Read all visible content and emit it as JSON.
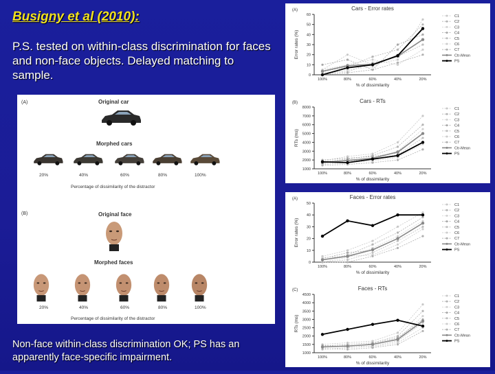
{
  "slide": {
    "title": "Busigny et al (2010):",
    "intro": "P.S. tested on within-class discrimination for faces and non-face objects. Delayed matching to sample.",
    "footer": "Non-face within-class discrimination OK; PS has an apparently face-specific impairment."
  },
  "stimuli": {
    "panel_a_label": "(A)",
    "original_car": "Original car",
    "morphed_cars": "Morphed cars",
    "panel_b_label": "(B)",
    "original_face": "Original face",
    "morphed_faces": "Morphed faces",
    "percentages": [
      "20%",
      "40%",
      "60%",
      "80%",
      "100%"
    ],
    "caption": "Percentage of dissimilarity of the distractor"
  },
  "colors": {
    "background": "#1b1c96",
    "title": "#f0e020",
    "patient": "#000000",
    "control_mean": "#888888",
    "controls": "#bbbbbb"
  },
  "chart_data": [
    {
      "id": "cars-error",
      "type": "line",
      "panel_label": "(A)",
      "title": "Cars - Error rates",
      "ylabel": "Error rates (%)",
      "xlabel": "% of dissimilarity",
      "categories": [
        "100%",
        "80%",
        "60%",
        "40%",
        "20%"
      ],
      "ylim": [
        0,
        60
      ],
      "yticks": [
        "0",
        "10",
        "20",
        "30",
        "40",
        "50",
        "60"
      ],
      "legend": [
        "C1",
        "C2",
        "C3",
        "C4",
        "C5",
        "C6",
        "C7",
        "Ctr-Mean",
        "PS"
      ],
      "controls": [
        [
          5,
          20,
          10,
          15,
          55
        ],
        [
          3,
          8,
          18,
          25,
          50
        ],
        [
          0,
          5,
          8,
          20,
          45
        ],
        [
          10,
          15,
          5,
          30,
          40
        ],
        [
          2,
          3,
          12,
          18,
          30
        ],
        [
          5,
          10,
          15,
          10,
          25
        ],
        [
          0,
          2,
          5,
          12,
          20
        ]
      ],
      "mean": [
        3.5,
        9,
        10.5,
        18.5,
        35
      ],
      "ps": [
        0,
        7,
        10,
        19,
        46
      ]
    },
    {
      "id": "cars-rt",
      "type": "line",
      "panel_label": "(B)",
      "title": "Cars - RTs",
      "ylabel": "RTs (ms)",
      "xlabel": "% of dissimilarity",
      "categories": [
        "100%",
        "80%",
        "60%",
        "40%",
        "20%"
      ],
      "ylim": [
        1000,
        8000
      ],
      "yticks": [
        "1000",
        "2000",
        "3000",
        "4000",
        "5000",
        "6000",
        "7000",
        "8000"
      ],
      "legend": [
        "C1",
        "C2",
        "C3",
        "C4",
        "C5",
        "C6",
        "C7",
        "Ctr-Mean",
        "PS"
      ],
      "controls": [
        [
          1900,
          2400,
          2700,
          4000,
          7000
        ],
        [
          1800,
          2100,
          2500,
          3500,
          6000
        ],
        [
          1600,
          1800,
          2200,
          3000,
          5500
        ],
        [
          2000,
          2200,
          2400,
          2800,
          5000
        ],
        [
          1700,
          1900,
          2100,
          2600,
          4500
        ],
        [
          1500,
          1700,
          1900,
          2300,
          3800
        ],
        [
          1400,
          1500,
          1700,
          2000,
          3200
        ]
      ],
      "mean": [
        1700,
        1950,
        2200,
        2900,
        5000
      ],
      "ps": [
        1800,
        1700,
        2100,
        2500,
        4000
      ]
    },
    {
      "id": "faces-error",
      "type": "line",
      "panel_label": "(A)",
      "title": "Faces - Error rates",
      "ylabel": "Error rates (%)",
      "xlabel": "% of dissimilarity",
      "categories": [
        "100%",
        "80%",
        "60%",
        "40%",
        "20%"
      ],
      "ylim": [
        0,
        50
      ],
      "yticks": [
        "0",
        "10",
        "20",
        "30",
        "40",
        "50"
      ],
      "legend": [
        "C1",
        "C2",
        "C3",
        "C4",
        "C5",
        "C6",
        "C7",
        "Ctr-Mean",
        "PS"
      ],
      "controls": [
        [
          5,
          10,
          18,
          30,
          42
        ],
        [
          2,
          6,
          15,
          25,
          38
        ],
        [
          0,
          4,
          12,
          22,
          35
        ],
        [
          3,
          8,
          10,
          20,
          33
        ],
        [
          0,
          2,
          8,
          18,
          30
        ],
        [
          4,
          5,
          6,
          15,
          28
        ],
        [
          0,
          0,
          5,
          12,
          22
        ]
      ],
      "mean": [
        2,
        5,
        10.5,
        20,
        33
      ],
      "ps": [
        22,
        35,
        31,
        40,
        40
      ]
    },
    {
      "id": "faces-rt",
      "type": "line",
      "panel_label": "(C)",
      "title": "Faces - RTs",
      "ylabel": "RTs (ms)",
      "xlabel": "% of dissimilarity",
      "categories": [
        "100%",
        "80%",
        "60%",
        "40%",
        "20%"
      ],
      "ylim": [
        1000,
        4500
      ],
      "yticks": [
        "1000",
        "1500",
        "2000",
        "2500",
        "3000",
        "3500",
        "4000",
        "4500"
      ],
      "legend": [
        "C1",
        "C2",
        "C3",
        "C4",
        "C5",
        "C6",
        "C7",
        "Ctr-Mean",
        "PS"
      ],
      "controls": [
        [
          1500,
          1600,
          1700,
          2200,
          3900
        ],
        [
          1400,
          1500,
          1600,
          2000,
          3500
        ],
        [
          1300,
          1400,
          1500,
          1800,
          3200
        ],
        [
          1450,
          1350,
          1550,
          1900,
          3000
        ],
        [
          1200,
          1300,
          1400,
          1700,
          2800
        ],
        [
          1350,
          1450,
          1350,
          1600,
          2500
        ],
        [
          1250,
          1200,
          1300,
          1500,
          2300
        ]
      ],
      "mean": [
        1350,
        1400,
        1500,
        1800,
        2900
      ],
      "ps": [
        2100,
        2400,
        2700,
        2950,
        2600
      ]
    }
  ]
}
